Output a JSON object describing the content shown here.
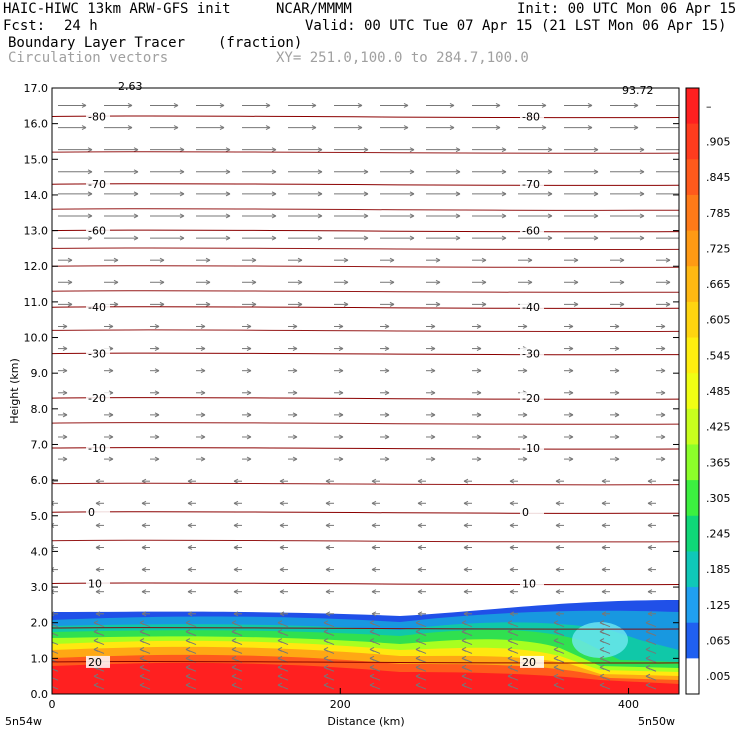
{
  "header": {
    "model": "HAIC-HIWC 13km ARW-GFS init",
    "org": "NCAR/MMMM",
    "init": "Init: 00 UTC Mon 06 Apr 15",
    "fcst_label": "Fcst:",
    "fcst_value": "24 h",
    "valid": "Valid: 00 UTC Tue 07 Apr 15 (21 LST Mon 06 Apr 15)",
    "field": "Boundary Layer Tracer",
    "field_units": "(fraction)",
    "overlay": "Circulation vectors",
    "xsec": "XY= 251.0,100.0 to 284.7,100.0"
  },
  "chart_data": {
    "type": "heatmap",
    "xlabel": "Distance (km)",
    "ylabel": "Height (km)",
    "xlim": [
      0,
      435
    ],
    "ylim": [
      0.0,
      17.0
    ],
    "x_ticks": [
      "0",
      "200",
      "400"
    ],
    "y_ticks": [
      "0.0",
      "1.0",
      "2.0",
      "3.0",
      "4.0",
      "5.0",
      "6.0",
      "7.0",
      "8.0",
      "9.0",
      "10.0",
      "11.0",
      "12.0",
      "13.0",
      "14.0",
      "15.0",
      "16.0",
      "17.0"
    ],
    "x_endpoints": [
      "5n54w",
      "5n50w"
    ],
    "vector_ref_labels": [
      "2.63",
      "93.72"
    ],
    "colorbar": {
      "labels": [
        "–",
        ".905",
        ".845",
        ".785",
        ".725",
        ".665",
        ".605",
        ".545",
        ".485",
        ".425",
        ".365",
        ".305",
        ".245",
        ".185",
        ".125",
        ".065",
        ".005"
      ],
      "colors": [
        "#ff2020",
        "#ff3c1e",
        "#ff5a1c",
        "#ff7a18",
        "#ff9a14",
        "#ffb812",
        "#ffd410",
        "#ffee10",
        "#f0ff14",
        "#c8ff1e",
        "#8cff2a",
        "#3cf040",
        "#10d878",
        "#10c8b8",
        "#20a0f0",
        "#2060f0",
        "#ffffff"
      ]
    },
    "temperature_contours": [
      {
        "label": "-80",
        "height": 16.2
      },
      {
        "label": "-70",
        "height": 14.3
      },
      {
        "label": "-60",
        "height": 13.0
      },
      {
        "label": "-40",
        "height": 10.85
      },
      {
        "label": "-30",
        "height": 9.55
      },
      {
        "label": "-20",
        "height": 8.3
      },
      {
        "label": "-10",
        "height": 6.9
      },
      {
        "label": "0",
        "height": 5.1
      },
      {
        "label": "10",
        "height": 3.1
      },
      {
        "label": "20",
        "height": 0.9
      }
    ]
  }
}
